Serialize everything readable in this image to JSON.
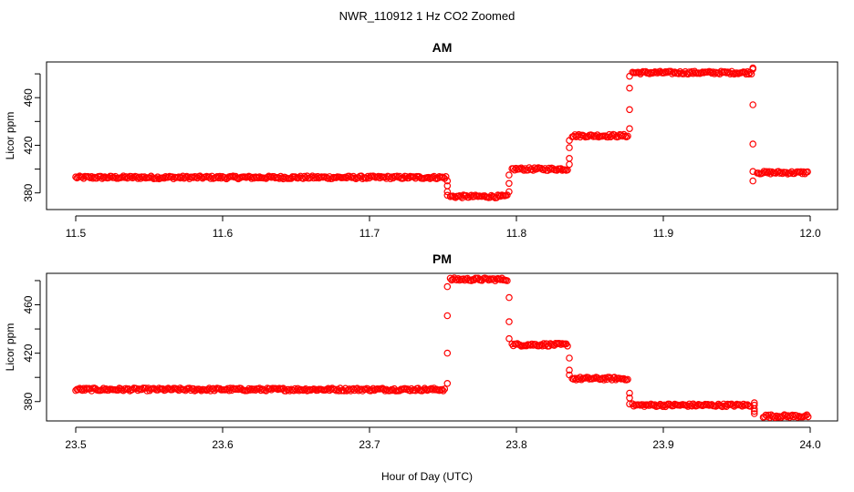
{
  "figure": {
    "title": "NWR_110912  1 Hz CO2 Zoomed",
    "xlabel": "Hour of Day (UTC)",
    "marker_color": "#ff0000",
    "marker": "open-circle"
  },
  "chart_data": [
    {
      "type": "scatter",
      "title": "AM",
      "xlabel": "",
      "ylabel": "Licor ppm",
      "xlim": [
        11.5,
        12.0
      ],
      "ylim": [
        366,
        490
      ],
      "xticks": [
        11.5,
        11.6,
        11.7,
        11.8,
        11.9,
        12.0
      ],
      "xtick_labels": [
        "11.5",
        "11.6",
        "11.7",
        "11.8",
        "11.9",
        "12.0"
      ],
      "yticks": [
        380,
        400,
        420,
        440,
        460,
        480
      ],
      "ytick_labels": [
        "380",
        "",
        "420",
        "",
        "460",
        ""
      ],
      "grid": false,
      "segments": [
        {
          "x_start": 11.5,
          "x_end": 11.752,
          "y": 393
        },
        {
          "x_start": 11.755,
          "x_end": 11.794,
          "y": 377
        },
        {
          "x_start": 11.797,
          "x_end": 11.835,
          "y": 400
        },
        {
          "x_start": 11.838,
          "x_end": 11.876,
          "y": 428
        },
        {
          "x_start": 11.879,
          "x_end": 11.96,
          "y": 481
        },
        {
          "x_start": 11.964,
          "x_end": 11.999,
          "y": 397
        }
      ],
      "transitions": [
        {
          "x": 11.753,
          "y": [
            390,
            386,
            381,
            378
          ]
        },
        {
          "x": 11.795,
          "y": [
            381,
            388,
            395
          ]
        },
        {
          "x": 11.836,
          "y": [
            404,
            409,
            418,
            424
          ]
        },
        {
          "x": 11.877,
          "y": [
            434,
            450,
            468,
            478
          ]
        },
        {
          "x": 11.961,
          "y": [
            485,
            484,
            454,
            421,
            398,
            390
          ]
        }
      ]
    },
    {
      "type": "scatter",
      "title": "PM",
      "xlabel": "",
      "ylabel": "Licor ppm",
      "xlim": [
        23.5,
        24.0
      ],
      "ylim": [
        364,
        486
      ],
      "xticks": [
        23.5,
        23.6,
        23.7,
        23.8,
        23.9,
        24.0
      ],
      "xtick_labels": [
        "23.5",
        "23.6",
        "23.7",
        "23.8",
        "23.9",
        "24.0"
      ],
      "yticks": [
        380,
        400,
        420,
        440,
        460,
        480
      ],
      "ytick_labels": [
        "380",
        "",
        "420",
        "",
        "460",
        ""
      ],
      "grid": false,
      "segments": [
        {
          "x_start": 23.5,
          "x_end": 23.752,
          "y": 390
        },
        {
          "x_start": 23.755,
          "x_end": 23.794,
          "y": 481
        },
        {
          "x_start": 23.797,
          "x_end": 23.835,
          "y": 427
        },
        {
          "x_start": 23.838,
          "x_end": 23.876,
          "y": 399
        },
        {
          "x_start": 23.879,
          "x_end": 23.96,
          "y": 377
        },
        {
          "x_start": 23.968,
          "x_end": 23.999,
          "y": 368
        }
      ],
      "transitions": [
        {
          "x": 23.753,
          "y": [
            395,
            420,
            451,
            475
          ]
        },
        {
          "x": 23.795,
          "y": [
            466,
            446,
            432
          ]
        },
        {
          "x": 23.836,
          "y": [
            416,
            406,
            402
          ]
        },
        {
          "x": 23.877,
          "y": [
            387,
            383,
            378
          ]
        },
        {
          "x": 23.962,
          "y": [
            379,
            377,
            374,
            372,
            370
          ]
        }
      ]
    }
  ]
}
